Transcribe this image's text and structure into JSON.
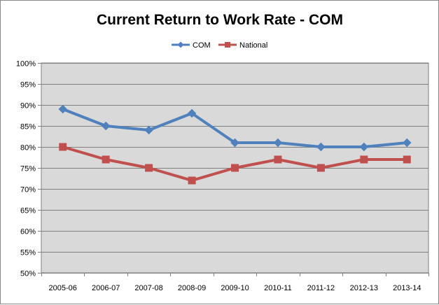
{
  "chart_data": {
    "type": "line",
    "title": "Current Return to Work Rate - COM",
    "categories": [
      "2005-06",
      "2006-07",
      "2007-08",
      "2008-09",
      "2009-10",
      "2010-11",
      "2011-12",
      "2012-13",
      "2013-14"
    ],
    "series": [
      {
        "name": "COM",
        "values": [
          89,
          85,
          84,
          88,
          81,
          81,
          80,
          80,
          81
        ],
        "color": "#4F81BD",
        "marker": "diamond"
      },
      {
        "name": "National",
        "values": [
          80,
          77,
          75,
          72,
          75,
          77,
          75,
          77,
          77
        ],
        "color": "#C0504D",
        "marker": "square"
      }
    ],
    "ylim": [
      50,
      100
    ],
    "yticks": [
      50,
      55,
      60,
      65,
      70,
      75,
      80,
      85,
      90,
      95,
      100
    ],
    "y_tick_format": "percent",
    "grid": true,
    "plot_background": "#D9D9D9",
    "legend_position": "top"
  }
}
